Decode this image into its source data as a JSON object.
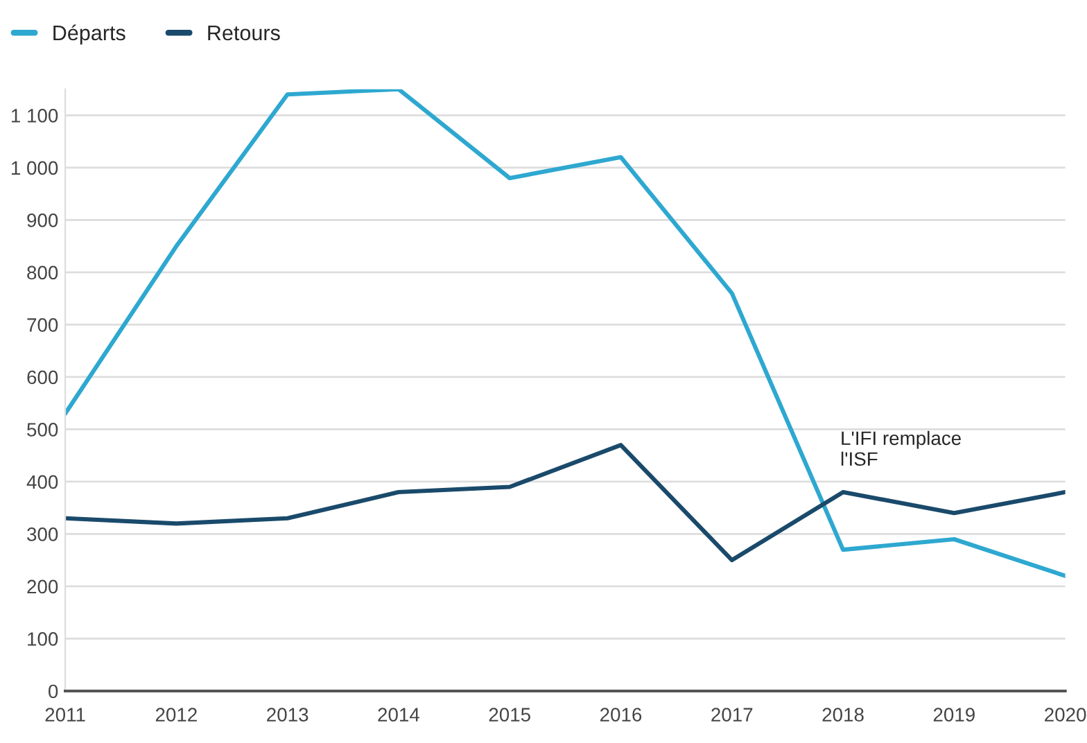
{
  "chart_data": {
    "type": "line",
    "x": [
      2011,
      2012,
      2013,
      2014,
      2015,
      2016,
      2017,
      2018,
      2019,
      2020
    ],
    "series": [
      {
        "name": "Départs",
        "color": "#2ea8d0",
        "values": [
          530,
          850,
          1140,
          1150,
          980,
          1020,
          760,
          270,
          290,
          220
        ]
      },
      {
        "name": "Retours",
        "color": "#1a4a6b",
        "values": [
          330,
          320,
          330,
          380,
          390,
          470,
          250,
          380,
          340,
          380
        ]
      }
    ],
    "xlim": [
      2011,
      2020
    ],
    "xticks": [
      2011,
      2012,
      2013,
      2014,
      2015,
      2016,
      2017,
      2018,
      2019,
      2020
    ],
    "ylim": [
      0,
      1150
    ],
    "yticks": [
      0,
      100,
      200,
      300,
      400,
      500,
      600,
      700,
      800,
      900,
      {
        "value": 1000,
        "label": "1 000"
      },
      {
        "value": 1100,
        "label": "1 100"
      }
    ],
    "grid": "y",
    "legend": "top left",
    "marker": "none",
    "line_style": "solid",
    "annotations": [
      "L'IFI remplace\nl'ISF"
    ]
  }
}
